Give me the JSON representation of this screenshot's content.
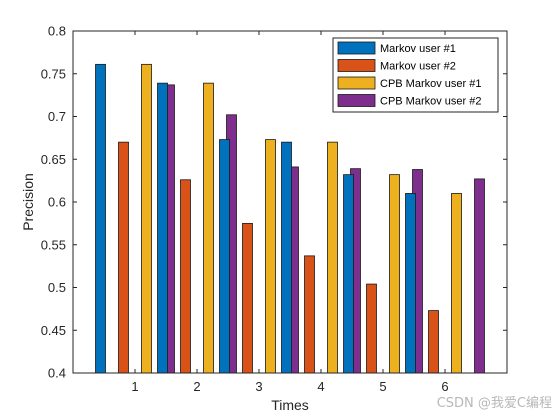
{
  "chart_data": {
    "type": "bar",
    "title": "",
    "xlabel": "Times",
    "ylabel": "Precision",
    "categories": [
      "1",
      "2",
      "3",
      "4",
      "5",
      "6"
    ],
    "ylim": [
      0.4,
      0.8
    ],
    "yticks": [
      "0.4",
      "0.45",
      "0.5",
      "0.55",
      "0.6",
      "0.65",
      "0.7",
      "0.75",
      "0.8"
    ],
    "grid": false,
    "legend_position": "top-right",
    "series": [
      {
        "name": "Markov user #1",
        "color": "#0072BD",
        "values": [
          0.761,
          0.739,
          0.673,
          0.67,
          0.632,
          0.61
        ]
      },
      {
        "name": "Markov user #2",
        "color": "#D95319",
        "values": [
          0.67,
          0.626,
          0.575,
          0.537,
          0.504,
          0.473
        ]
      },
      {
        "name": "CPB Markov user #1",
        "color": "#EDB120",
        "values": [
          0.761,
          0.739,
          0.673,
          0.67,
          0.632,
          0.61
        ]
      },
      {
        "name": "CPB Markov user #2",
        "color": "#7E2F8E",
        "values": [
          0.737,
          0.702,
          0.641,
          0.639,
          0.638,
          0.627
        ]
      }
    ]
  },
  "watermark": "CSDN @我爱C编程"
}
